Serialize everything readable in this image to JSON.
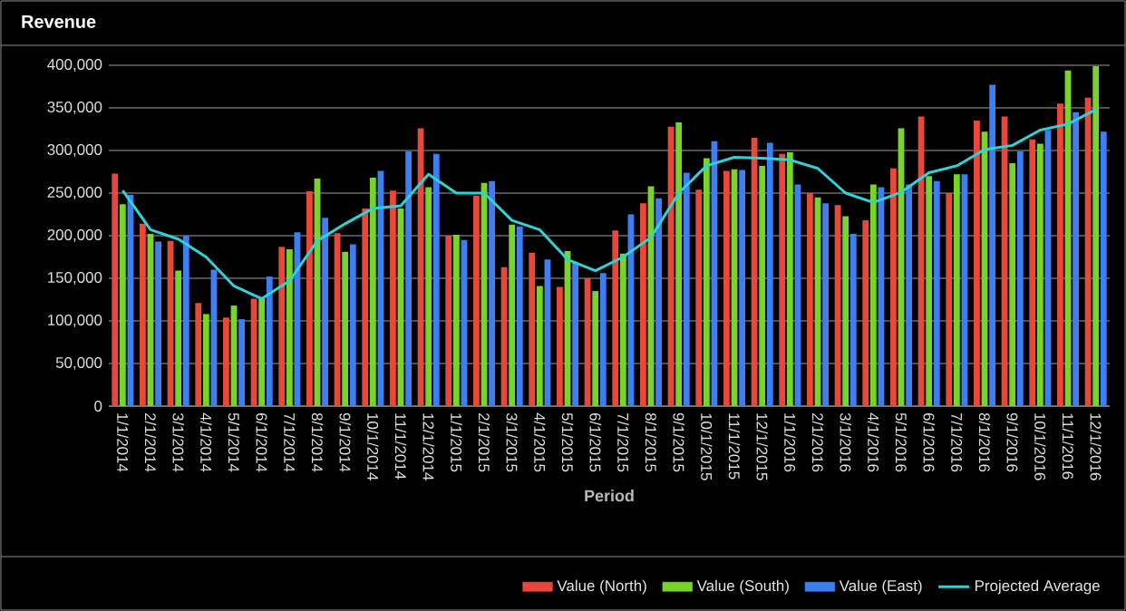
{
  "chart_data": {
    "type": "bar",
    "title": "Revenue",
    "xlabel": "Period",
    "categories": [
      "1/1/2014",
      "2/1/2014",
      "3/1/2014",
      "4/1/2014",
      "5/1/2014",
      "6/1/2014",
      "7/1/2014",
      "8/1/2014",
      "9/1/2014",
      "10/1/2014",
      "11/1/2014",
      "12/1/2014",
      "1/1/2015",
      "2/1/2015",
      "3/1/2015",
      "4/1/2015",
      "5/1/2015",
      "6/1/2015",
      "7/1/2015",
      "8/1/2015",
      "9/1/2015",
      "10/1/2015",
      "11/1/2015",
      "12/1/2015",
      "1/1/2016",
      "2/1/2016",
      "3/1/2016",
      "4/1/2016",
      "5/1/2016",
      "6/1/2016",
      "7/1/2016",
      "8/1/2016",
      "9/1/2016",
      "10/1/2016",
      "11/1/2016",
      "12/1/2016"
    ],
    "series": [
      {
        "name": "Value (North)",
        "color": "#e8483a",
        "values": [
          273000,
          214000,
          194000,
          121000,
          104000,
          126000,
          187000,
          252000,
          203000,
          232000,
          253000,
          326000,
          200000,
          247000,
          163000,
          180000,
          140000,
          150000,
          206000,
          238000,
          328000,
          254000,
          276000,
          315000,
          296000,
          250000,
          236000,
          218000,
          279000,
          340000,
          250000,
          335000,
          340000,
          313000,
          355000,
          362000
        ]
      },
      {
        "name": "Value (South)",
        "color": "#77d42a",
        "values": [
          237000,
          202000,
          159000,
          108000,
          118000,
          128000,
          184000,
          267000,
          181000,
          268000,
          232000,
          257000,
          201000,
          262000,
          213000,
          141000,
          182000,
          135000,
          179000,
          258000,
          333000,
          291000,
          278000,
          282000,
          298000,
          245000,
          223000,
          260000,
          326000,
          270000,
          272000,
          322000,
          285000,
          308000,
          394000,
          399000
        ]
      },
      {
        "name": "Value (East)",
        "color": "#3d7ef0",
        "values": [
          248000,
          193000,
          200000,
          160000,
          102000,
          152000,
          204000,
          221000,
          190000,
          276000,
          299000,
          296000,
          195000,
          264000,
          211000,
          172000,
          168000,
          156000,
          225000,
          244000,
          274000,
          311000,
          277000,
          309000,
          260000,
          238000,
          202000,
          257000,
          260000,
          264000,
          272000,
          377000,
          299000,
          324000,
          345000,
          322000
        ]
      },
      {
        "name": "Projected Average",
        "type": "line",
        "color": "#2ed3d8",
        "values": [
          253000,
          207000,
          196000,
          175000,
          141000,
          126000,
          147000,
          194000,
          214000,
          232000,
          235000,
          272000,
          250000,
          250000,
          218000,
          207000,
          172000,
          159000,
          175000,
          198000,
          250000,
          282000,
          292000,
          291000,
          289000,
          279000,
          250000,
          239000,
          251000,
          274000,
          282000,
          301000,
          306000,
          324000,
          331000,
          348000
        ]
      }
    ],
    "ylim": [
      0,
      400000
    ],
    "yticks": [
      {
        "value": 0,
        "label": "0"
      },
      {
        "value": 50000,
        "label": "50,000"
      },
      {
        "value": 100000,
        "label": "100,000"
      },
      {
        "value": 150000,
        "label": "150,000"
      },
      {
        "value": 200000,
        "label": "200,000"
      },
      {
        "value": 250000,
        "label": "250,000"
      },
      {
        "value": 300000,
        "label": "300,000"
      },
      {
        "value": 350000,
        "label": "350,000"
      },
      {
        "value": 400000,
        "label": "400,000"
      }
    ],
    "grid": "y",
    "legend": "bottom right"
  }
}
